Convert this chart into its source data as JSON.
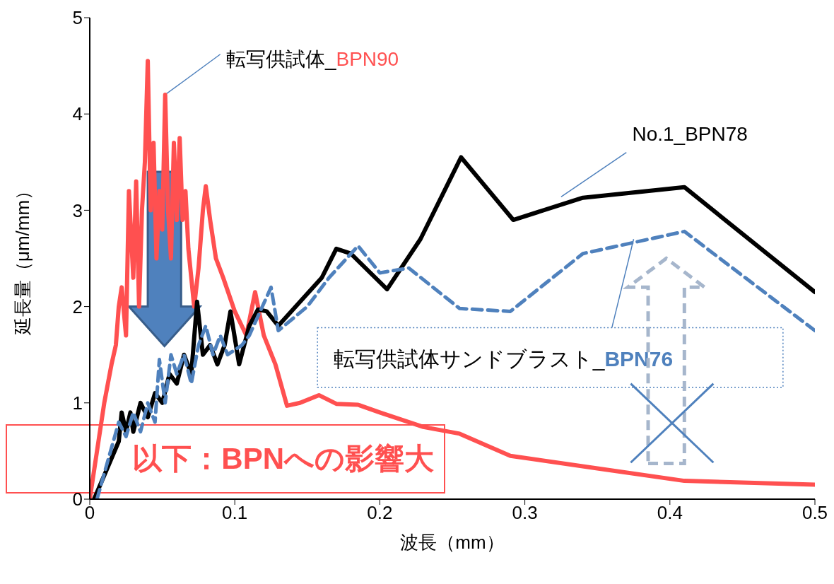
{
  "chart_data": {
    "type": "line",
    "xlabel": "波長（mm）",
    "ylabel": "延長量（μm/mm）",
    "xlim": [
      0,
      0.5
    ],
    "xticks": [
      0,
      0.1,
      0.2,
      0.3,
      0.4,
      0.5
    ],
    "ylim": [
      0,
      5
    ],
    "yticks": [
      0,
      1,
      2,
      3,
      4,
      5
    ],
    "marker": "none",
    "series": [
      {
        "name": "転写供試体_BPN90",
        "color": "#ff5050",
        "line_style": "solid",
        "x": [
          0,
          0.005,
          0.01,
          0.015,
          0.018,
          0.02,
          0.022,
          0.025,
          0.027,
          0.03,
          0.032,
          0.034,
          0.036,
          0.038,
          0.04,
          0.042,
          0.044,
          0.046,
          0.048,
          0.05,
          0.052,
          0.054,
          0.056,
          0.058,
          0.06,
          0.062,
          0.064,
          0.066,
          0.068,
          0.072,
          0.075,
          0.078,
          0.08,
          0.083,
          0.087,
          0.092,
          0.1,
          0.108,
          0.114,
          0.12,
          0.128,
          0.136,
          0.145,
          0.158,
          0.17,
          0.185,
          0.2,
          0.23,
          0.255,
          0.29,
          0.35,
          0.41,
          0.5
        ],
        "values": [
          0,
          0.5,
          1.0,
          1.4,
          1.6,
          2.0,
          2.2,
          1.7,
          3.2,
          2.3,
          3.3,
          2.0,
          3.0,
          3.5,
          4.55,
          3.0,
          3.7,
          2.5,
          3.2,
          2.8,
          4.2,
          3.0,
          2.5,
          3.7,
          2.9,
          3.75,
          2.9,
          3.2,
          2.6,
          2.0,
          2.4,
          3.0,
          3.25,
          2.9,
          2.5,
          2.3,
          1.95,
          1.7,
          2.15,
          1.7,
          1.4,
          0.97,
          1.0,
          1.08,
          0.99,
          0.98,
          0.9,
          0.75,
          0.68,
          0.45,
          0.32,
          0.19,
          0.15
        ]
      },
      {
        "name": "No.1_BPN78",
        "color": "#000000",
        "line_style": "solid",
        "x": [
          0.003,
          0.02,
          0.022,
          0.025,
          0.028,
          0.03,
          0.035,
          0.04,
          0.045,
          0.05,
          0.055,
          0.06,
          0.065,
          0.07,
          0.074,
          0.078,
          0.083,
          0.088,
          0.093,
          0.097,
          0.103,
          0.11,
          0.116,
          0.122,
          0.13,
          0.145,
          0.16,
          0.17,
          0.18,
          0.205,
          0.228,
          0.256,
          0.292,
          0.34,
          0.41,
          0.5
        ],
        "values": [
          0,
          0.6,
          0.9,
          0.7,
          0.9,
          0.7,
          1.0,
          0.85,
          1.1,
          1.0,
          1.3,
          1.2,
          1.5,
          1.3,
          2.05,
          1.5,
          1.6,
          1.4,
          1.6,
          1.95,
          1.4,
          1.8,
          1.97,
          1.95,
          1.8,
          2.05,
          2.3,
          2.6,
          2.55,
          2.18,
          2.7,
          3.55,
          2.9,
          3.13,
          3.24,
          2.15
        ]
      },
      {
        "name": "転写供試体サンドブラスト_BPN76",
        "color": "#4f81bd",
        "line_style": "dashed",
        "x": [
          0.005,
          0.02,
          0.025,
          0.03,
          0.035,
          0.04,
          0.045,
          0.048,
          0.052,
          0.056,
          0.06,
          0.065,
          0.07,
          0.075,
          0.08,
          0.085,
          0.09,
          0.095,
          0.105,
          0.11,
          0.125,
          0.13,
          0.15,
          0.165,
          0.185,
          0.2,
          0.22,
          0.255,
          0.29,
          0.34,
          0.41,
          0.5
        ],
        "values": [
          0,
          0.8,
          0.65,
          0.9,
          0.7,
          1.0,
          0.8,
          1.45,
          1.0,
          1.5,
          1.3,
          1.5,
          1.2,
          1.6,
          1.8,
          1.5,
          1.7,
          1.5,
          1.6,
          1.7,
          2.2,
          1.75,
          2.0,
          2.3,
          2.63,
          2.35,
          2.4,
          1.98,
          1.95,
          2.55,
          2.78,
          1.75
        ]
      }
    ],
    "annotations": [
      "以下：BPNへの影響大"
    ]
  }
}
